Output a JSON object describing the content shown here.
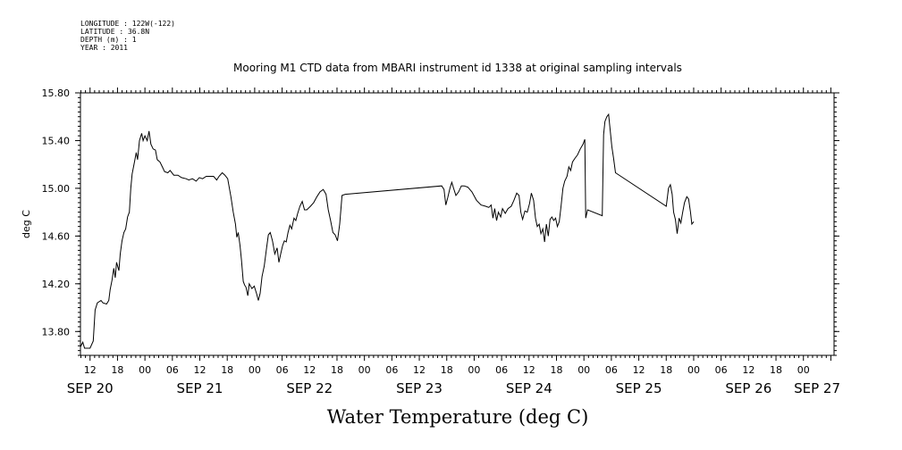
{
  "header": {
    "lines": [
      "LONGITUDE : 122W(-122)",
      "LATITUDE : 36.8N",
      "DEPTH (m) : 1",
      "YEAR : 2011"
    ]
  },
  "chart_data": {
    "type": "line",
    "title": "Mooring M1 CTD data from MBARI instrument id 1338 at original sampling intervals",
    "xlabel": "Water Temperature (deg C)",
    "ylabel": "deg C",
    "x_unit": "hours since SEP 20 00:00",
    "xlim": [
      9.9,
      174.7
    ],
    "ylim": [
      13.6,
      15.8
    ],
    "yticks": [
      13.8,
      14.2,
      14.6,
      15.0,
      15.4,
      15.8
    ],
    "ytick_labels": [
      "13.80",
      "14.20",
      "14.60",
      "15.00",
      "15.40",
      "15.80"
    ],
    "xticks": [
      {
        "x": 12,
        "label": "12"
      },
      {
        "x": 18,
        "label": "18"
      },
      {
        "x": 24,
        "label": "00"
      },
      {
        "x": 30,
        "label": "06"
      },
      {
        "x": 36,
        "label": "12"
      },
      {
        "x": 42,
        "label": "18"
      },
      {
        "x": 48,
        "label": "00"
      },
      {
        "x": 54,
        "label": "06"
      },
      {
        "x": 60,
        "label": "12"
      },
      {
        "x": 66,
        "label": "18"
      },
      {
        "x": 72,
        "label": "00"
      },
      {
        "x": 78,
        "label": "06"
      },
      {
        "x": 84,
        "label": "12"
      },
      {
        "x": 90,
        "label": "18"
      },
      {
        "x": 96,
        "label": "00"
      },
      {
        "x": 102,
        "label": "06"
      },
      {
        "x": 108,
        "label": "12"
      },
      {
        "x": 114,
        "label": "18"
      },
      {
        "x": 120,
        "label": "00"
      },
      {
        "x": 126,
        "label": "06"
      },
      {
        "x": 132,
        "label": "12"
      },
      {
        "x": 138,
        "label": "18"
      },
      {
        "x": 144,
        "label": "00"
      },
      {
        "x": 150,
        "label": "06"
      },
      {
        "x": 156,
        "label": "12"
      },
      {
        "x": 162,
        "label": "18"
      },
      {
        "x": 168,
        "label": "00"
      }
    ],
    "day_labels": [
      {
        "x": 12,
        "label": "SEP 20"
      },
      {
        "x": 36,
        "label": "SEP 21"
      },
      {
        "x": 60,
        "label": "SEP 22"
      },
      {
        "x": 84,
        "label": "SEP 23"
      },
      {
        "x": 108,
        "label": "SEP 24"
      },
      {
        "x": 132,
        "label": "SEP 25"
      },
      {
        "x": 156,
        "label": "SEP 26"
      },
      {
        "x": 171,
        "label": "SEP 27"
      }
    ],
    "grid": false,
    "series": [
      {
        "color": "#000000",
        "points": [
          [
            9.9,
            13.67
          ],
          [
            10.4,
            13.71
          ],
          [
            10.8,
            13.66
          ],
          [
            12.0,
            13.66
          ],
          [
            12.7,
            13.72
          ],
          [
            13.1,
            13.98
          ],
          [
            13.6,
            14.04
          ],
          [
            14.4,
            14.06
          ],
          [
            14.8,
            14.04
          ],
          [
            15.6,
            14.03
          ],
          [
            16.1,
            14.06
          ],
          [
            16.4,
            14.15
          ],
          [
            16.8,
            14.23
          ],
          [
            17.2,
            14.33
          ],
          [
            17.5,
            14.25
          ],
          [
            17.8,
            14.38
          ],
          [
            18.3,
            14.31
          ],
          [
            18.6,
            14.45
          ],
          [
            19.0,
            14.56
          ],
          [
            19.4,
            14.63
          ],
          [
            19.8,
            14.66
          ],
          [
            20.2,
            14.76
          ],
          [
            20.6,
            14.8
          ],
          [
            20.9,
            15.0
          ],
          [
            21.2,
            15.12
          ],
          [
            21.7,
            15.22
          ],
          [
            22.1,
            15.3
          ],
          [
            22.4,
            15.24
          ],
          [
            22.8,
            15.4
          ],
          [
            23.3,
            15.46
          ],
          [
            23.6,
            15.4
          ],
          [
            24.0,
            15.44
          ],
          [
            24.5,
            15.4
          ],
          [
            24.9,
            15.48
          ],
          [
            25.3,
            15.37
          ],
          [
            25.8,
            15.33
          ],
          [
            26.3,
            15.32
          ],
          [
            26.7,
            15.24
          ],
          [
            27.3,
            15.22
          ],
          [
            27.8,
            15.18
          ],
          [
            28.3,
            15.14
          ],
          [
            29.0,
            15.13
          ],
          [
            29.5,
            15.15
          ],
          [
            30.3,
            15.11
          ],
          [
            31.2,
            15.11
          ],
          [
            32.0,
            15.09
          ],
          [
            33.0,
            15.08
          ],
          [
            33.6,
            15.07
          ],
          [
            34.4,
            15.08
          ],
          [
            35.2,
            15.06
          ],
          [
            35.9,
            15.09
          ],
          [
            36.6,
            15.08
          ],
          [
            37.4,
            15.1
          ],
          [
            38.2,
            15.1
          ],
          [
            39.0,
            15.1
          ],
          [
            39.7,
            15.07
          ],
          [
            40.2,
            15.1
          ],
          [
            40.9,
            15.13
          ],
          [
            41.5,
            15.11
          ],
          [
            42.1,
            15.08
          ],
          [
            42.8,
            14.93
          ],
          [
            43.3,
            14.8
          ],
          [
            43.8,
            14.7
          ],
          [
            44.1,
            14.59
          ],
          [
            44.4,
            14.63
          ],
          [
            44.8,
            14.52
          ],
          [
            45.1,
            14.4
          ],
          [
            45.5,
            14.22
          ],
          [
            45.8,
            14.19
          ],
          [
            46.1,
            14.17
          ],
          [
            46.5,
            14.1
          ],
          [
            46.8,
            14.2
          ],
          [
            47.4,
            14.16
          ],
          [
            47.9,
            14.18
          ],
          [
            48.4,
            14.12
          ],
          [
            48.8,
            14.06
          ],
          [
            49.2,
            14.12
          ],
          [
            49.6,
            14.26
          ],
          [
            50.1,
            14.35
          ],
          [
            50.6,
            14.5
          ],
          [
            51.0,
            14.61
          ],
          [
            51.4,
            14.63
          ],
          [
            51.9,
            14.56
          ],
          [
            52.4,
            14.45
          ],
          [
            52.9,
            14.5
          ],
          [
            53.3,
            14.38
          ],
          [
            53.7,
            14.45
          ],
          [
            54.1,
            14.52
          ],
          [
            54.5,
            14.56
          ],
          [
            54.9,
            14.55
          ],
          [
            55.3,
            14.63
          ],
          [
            55.7,
            14.69
          ],
          [
            56.1,
            14.66
          ],
          [
            56.6,
            14.75
          ],
          [
            57.0,
            14.73
          ],
          [
            57.4,
            14.79
          ],
          [
            57.9,
            14.85
          ],
          [
            58.4,
            14.89
          ],
          [
            58.9,
            14.82
          ],
          [
            59.4,
            14.82
          ],
          [
            60.2,
            14.85
          ],
          [
            60.9,
            14.88
          ],
          [
            61.6,
            14.93
          ],
          [
            62.3,
            14.97
          ],
          [
            63.0,
            14.99
          ],
          [
            63.6,
            14.95
          ],
          [
            64.1,
            14.82
          ],
          [
            64.6,
            14.73
          ],
          [
            65.1,
            14.63
          ],
          [
            65.6,
            14.61
          ],
          [
            66.1,
            14.56
          ],
          [
            66.6,
            14.7
          ],
          [
            67.1,
            14.94
          ],
          [
            67.8,
            14.95
          ],
          [
            88.9,
            15.02
          ],
          [
            89.4,
            14.99
          ],
          [
            89.8,
            14.86
          ],
          [
            90.2,
            14.92
          ],
          [
            90.7,
            15.0
          ],
          [
            91.1,
            15.05
          ],
          [
            91.5,
            15.0
          ],
          [
            92.0,
            14.94
          ],
          [
            92.6,
            14.97
          ],
          [
            93.2,
            15.02
          ],
          [
            93.8,
            15.02
          ],
          [
            94.6,
            15.01
          ],
          [
            95.5,
            14.97
          ],
          [
            96.5,
            14.9
          ],
          [
            97.5,
            14.86
          ],
          [
            98.5,
            14.85
          ],
          [
            99.2,
            14.84
          ],
          [
            99.7,
            14.86
          ],
          [
            100.1,
            14.75
          ],
          [
            100.5,
            14.83
          ],
          [
            100.9,
            14.73
          ],
          [
            101.3,
            14.8
          ],
          [
            101.8,
            14.76
          ],
          [
            102.2,
            14.83
          ],
          [
            102.8,
            14.79
          ],
          [
            103.4,
            14.83
          ],
          [
            104.1,
            14.85
          ],
          [
            104.7,
            14.9
          ],
          [
            105.3,
            14.96
          ],
          [
            105.8,
            14.94
          ],
          [
            106.2,
            14.8
          ],
          [
            106.6,
            14.74
          ],
          [
            107.1,
            14.81
          ],
          [
            107.6,
            14.8
          ],
          [
            108.1,
            14.87
          ],
          [
            108.5,
            14.96
          ],
          [
            109.0,
            14.9
          ],
          [
            109.4,
            14.75
          ],
          [
            109.8,
            14.68
          ],
          [
            110.2,
            14.7
          ],
          [
            110.6,
            14.62
          ],
          [
            111.0,
            14.66
          ],
          [
            111.4,
            14.55
          ],
          [
            111.8,
            14.7
          ],
          [
            112.2,
            14.6
          ],
          [
            112.6,
            14.74
          ],
          [
            113.0,
            14.76
          ],
          [
            113.4,
            14.73
          ],
          [
            113.8,
            14.75
          ],
          [
            114.2,
            14.68
          ],
          [
            114.6,
            14.72
          ],
          [
            115.0,
            14.85
          ],
          [
            115.4,
            15.0
          ],
          [
            115.8,
            15.06
          ],
          [
            116.3,
            15.1
          ],
          [
            116.7,
            15.18
          ],
          [
            117.1,
            15.15
          ],
          [
            117.5,
            15.22
          ],
          [
            118.0,
            15.25
          ],
          [
            118.6,
            15.28
          ],
          [
            119.2,
            15.33
          ],
          [
            119.8,
            15.37
          ],
          [
            120.2,
            15.41
          ],
          [
            120.4,
            14.75
          ],
          [
            120.8,
            14.82
          ],
          [
            124.0,
            14.77
          ],
          [
            124.3,
            15.45
          ],
          [
            124.6,
            15.56
          ],
          [
            125.0,
            15.6
          ],
          [
            125.4,
            15.62
          ],
          [
            125.7,
            15.5
          ],
          [
            126.1,
            15.35
          ],
          [
            126.5,
            15.25
          ],
          [
            126.9,
            15.13
          ],
          [
            138.0,
            14.85
          ],
          [
            138.5,
            15.0
          ],
          [
            138.9,
            15.03
          ],
          [
            139.3,
            14.95
          ],
          [
            139.6,
            14.8
          ],
          [
            140.0,
            14.74
          ],
          [
            140.4,
            14.62
          ],
          [
            140.8,
            14.75
          ],
          [
            141.2,
            14.71
          ],
          [
            141.6,
            14.8
          ],
          [
            142.0,
            14.88
          ],
          [
            142.5,
            14.93
          ],
          [
            142.9,
            14.91
          ],
          [
            143.3,
            14.8
          ],
          [
            143.6,
            14.7
          ],
          [
            144.0,
            14.72
          ]
        ]
      }
    ]
  }
}
